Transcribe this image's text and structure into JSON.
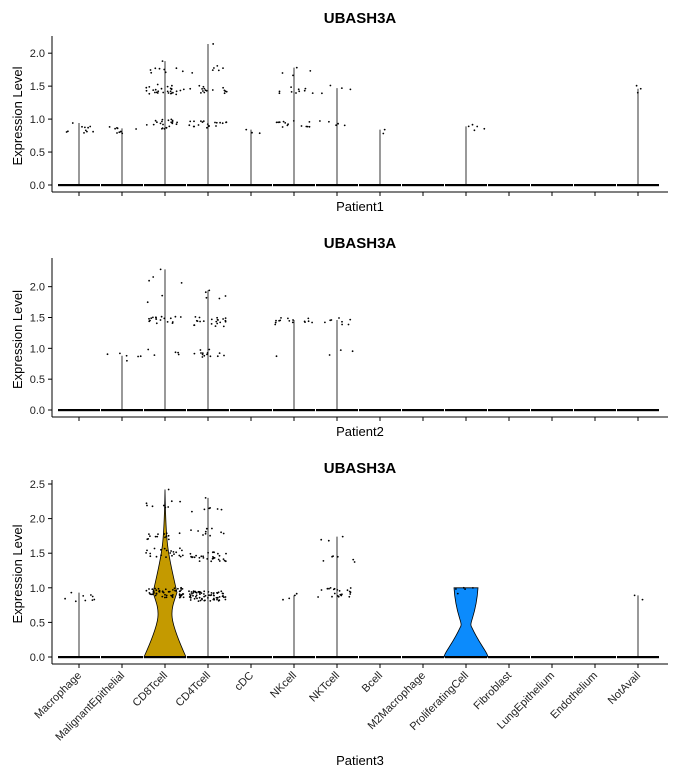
{
  "chart_data": [
    {
      "type": "violin",
      "title": "UBASH3A",
      "xlabel": "Patient1",
      "ylabel": "Expression Level",
      "ylim": [
        0,
        2.2
      ],
      "yticks": [
        "0.0",
        "0.5",
        "1.0",
        "1.5",
        "2.0"
      ],
      "show_x_tick_labels": false,
      "categories": [
        "Macrophage",
        "MalignantEpithelial",
        "CD8Tcell",
        "CD4Tcell",
        "cDC",
        "NKcell",
        "NKTcell",
        "Bcell",
        "M2Macrophage",
        "ProliferatingCell",
        "Fibroblast",
        "LungEpithelium",
        "Endothelium",
        "NotAvail"
      ],
      "groups": [
        {
          "max": 0.94,
          "levels": [
            {
              "y": 0.85,
              "n": 10
            }
          ]
        },
        {
          "max": 0.86,
          "levels": [
            {
              "y": 0.84,
              "n": 9
            }
          ]
        },
        {
          "max": 1.88,
          "levels": [
            {
              "y": 0.92,
              "n": 22
            },
            {
              "y": 1.45,
              "n": 28
            },
            {
              "y": 1.75,
              "n": 8
            }
          ]
        },
        {
          "max": 2.14,
          "levels": [
            {
              "y": 0.92,
              "n": 20
            },
            {
              "y": 1.45,
              "n": 16
            },
            {
              "y": 1.75,
              "n": 6
            }
          ]
        },
        {
          "max": 0.84,
          "levels": [
            {
              "y": 0.84,
              "n": 2
            }
          ]
        },
        {
          "max": 1.78,
          "levels": [
            {
              "y": 0.92,
              "n": 14
            },
            {
              "y": 1.43,
              "n": 10
            },
            {
              "y": 1.72,
              "n": 3
            }
          ]
        },
        {
          "max": 1.47,
          "levels": [
            {
              "y": 0.93,
              "n": 5
            },
            {
              "y": 1.45,
              "n": 3
            }
          ]
        },
        {
          "max": 0.84,
          "levels": [
            {
              "y": 0.84,
              "n": 1
            }
          ]
        },
        {
          "max": 0,
          "levels": []
        },
        {
          "max": 0.89,
          "levels": [
            {
              "y": 0.87,
              "n": 4
            }
          ]
        },
        {
          "max": 0,
          "levels": []
        },
        {
          "max": 0,
          "levels": []
        },
        {
          "max": 0,
          "levels": []
        },
        {
          "max": 1.46,
          "levels": [
            {
              "y": 1.45,
              "n": 2
            }
          ]
        }
      ]
    },
    {
      "type": "violin",
      "title": "UBASH3A",
      "xlabel": "Patient2",
      "ylabel": "Expression Level",
      "ylim": [
        0,
        2.4
      ],
      "yticks": [
        "0.0",
        "0.5",
        "1.0",
        "1.5",
        "2.0"
      ],
      "show_x_tick_labels": false,
      "categories": [
        "Macrophage",
        "MalignantEpithelial",
        "CD8Tcell",
        "CD4Tcell",
        "cDC",
        "NKcell",
        "NKTcell",
        "Bcell",
        "M2Macrophage",
        "ProliferatingCell",
        "Fibroblast",
        "LungEpithelium",
        "Endothelium",
        "NotAvail"
      ],
      "groups": [
        {
          "max": 0,
          "levels": []
        },
        {
          "max": 0.88,
          "levels": [
            {
              "y": 0.86,
              "n": 5
            }
          ]
        },
        {
          "max": 2.28,
          "levels": [
            {
              "y": 0.92,
              "n": 5
            },
            {
              "y": 1.45,
              "n": 18
            },
            {
              "y": 1.8,
              "n": 2
            },
            {
              "y": 2.1,
              "n": 3
            }
          ]
        },
        {
          "max": 1.94,
          "levels": [
            {
              "y": 0.92,
              "n": 14
            },
            {
              "y": 1.43,
              "n": 22
            },
            {
              "y": 1.85,
              "n": 4
            }
          ]
        },
        {
          "max": 0,
          "levels": []
        },
        {
          "max": 1.46,
          "levels": [
            {
              "y": 0.93,
              "n": 1
            },
            {
              "y": 1.43,
              "n": 14
            }
          ]
        },
        {
          "max": 1.46,
          "levels": [
            {
              "y": 0.93,
              "n": 3
            },
            {
              "y": 1.43,
              "n": 7
            }
          ]
        },
        {
          "max": 0,
          "levels": []
        },
        {
          "max": 0,
          "levels": []
        },
        {
          "max": 0,
          "levels": []
        },
        {
          "max": 0,
          "levels": []
        },
        {
          "max": 0,
          "levels": []
        },
        {
          "max": 0,
          "levels": []
        },
        {
          "max": 0,
          "levels": []
        }
      ]
    },
    {
      "type": "violin",
      "title": "UBASH3A",
      "xlabel": "Patient3",
      "ylabel": "Expression Level",
      "ylim": [
        0,
        2.5
      ],
      "yticks": [
        "0.0",
        "0.5",
        "1.0",
        "1.5",
        "2.0",
        "2.5"
      ],
      "show_x_tick_labels": true,
      "categories": [
        "Macrophage",
        "MalignantEpithelial",
        "CD8Tcell",
        "CD4Tcell",
        "cDC",
        "NKcell",
        "NKTcell",
        "Bcell",
        "M2Macrophage",
        "ProliferatingCell",
        "Fibroblast",
        "LungEpithelium",
        "Endothelium",
        "NotAvail"
      ],
      "colors": {
        "CD8Tcell": "#C49A00",
        "ProliferatingCell": "#0C8BFC"
      },
      "groups": [
        {
          "max": 0.93,
          "levels": [
            {
              "y": 0.85,
              "n": 8
            }
          ]
        },
        {
          "max": 0,
          "levels": []
        },
        {
          "max": 2.42,
          "levels": [
            {
              "y": 0.93,
              "n": 60
            },
            {
              "y": 1.5,
              "n": 22
            },
            {
              "y": 1.75,
              "n": 14
            },
            {
              "y": 2.2,
              "n": 8
            }
          ]
        },
        {
          "max": 2.3,
          "levels": [
            {
              "y": 0.88,
              "n": 70
            },
            {
              "y": 1.45,
              "n": 30
            },
            {
              "y": 1.8,
              "n": 10
            },
            {
              "y": 2.15,
              "n": 6
            }
          ]
        },
        {
          "max": 0,
          "levels": []
        },
        {
          "max": 0.89,
          "levels": [
            {
              "y": 0.88,
              "n": 3
            }
          ]
        },
        {
          "max": 1.74,
          "levels": [
            {
              "y": 0.93,
              "n": 22
            },
            {
              "y": 1.4,
              "n": 6
            },
            {
              "y": 1.7,
              "n": 2
            }
          ]
        },
        {
          "max": 0,
          "levels": []
        },
        {
          "max": 0,
          "levels": []
        },
        {
          "max": 1.0,
          "levels": [
            {
              "y": 0.95,
              "n": 4
            }
          ]
        },
        {
          "max": 0,
          "levels": []
        },
        {
          "max": 0,
          "levels": []
        },
        {
          "max": 0,
          "levels": []
        },
        {
          "max": 0.89,
          "levels": [
            {
              "y": 0.88,
              "n": 1
            }
          ]
        }
      ]
    }
  ]
}
